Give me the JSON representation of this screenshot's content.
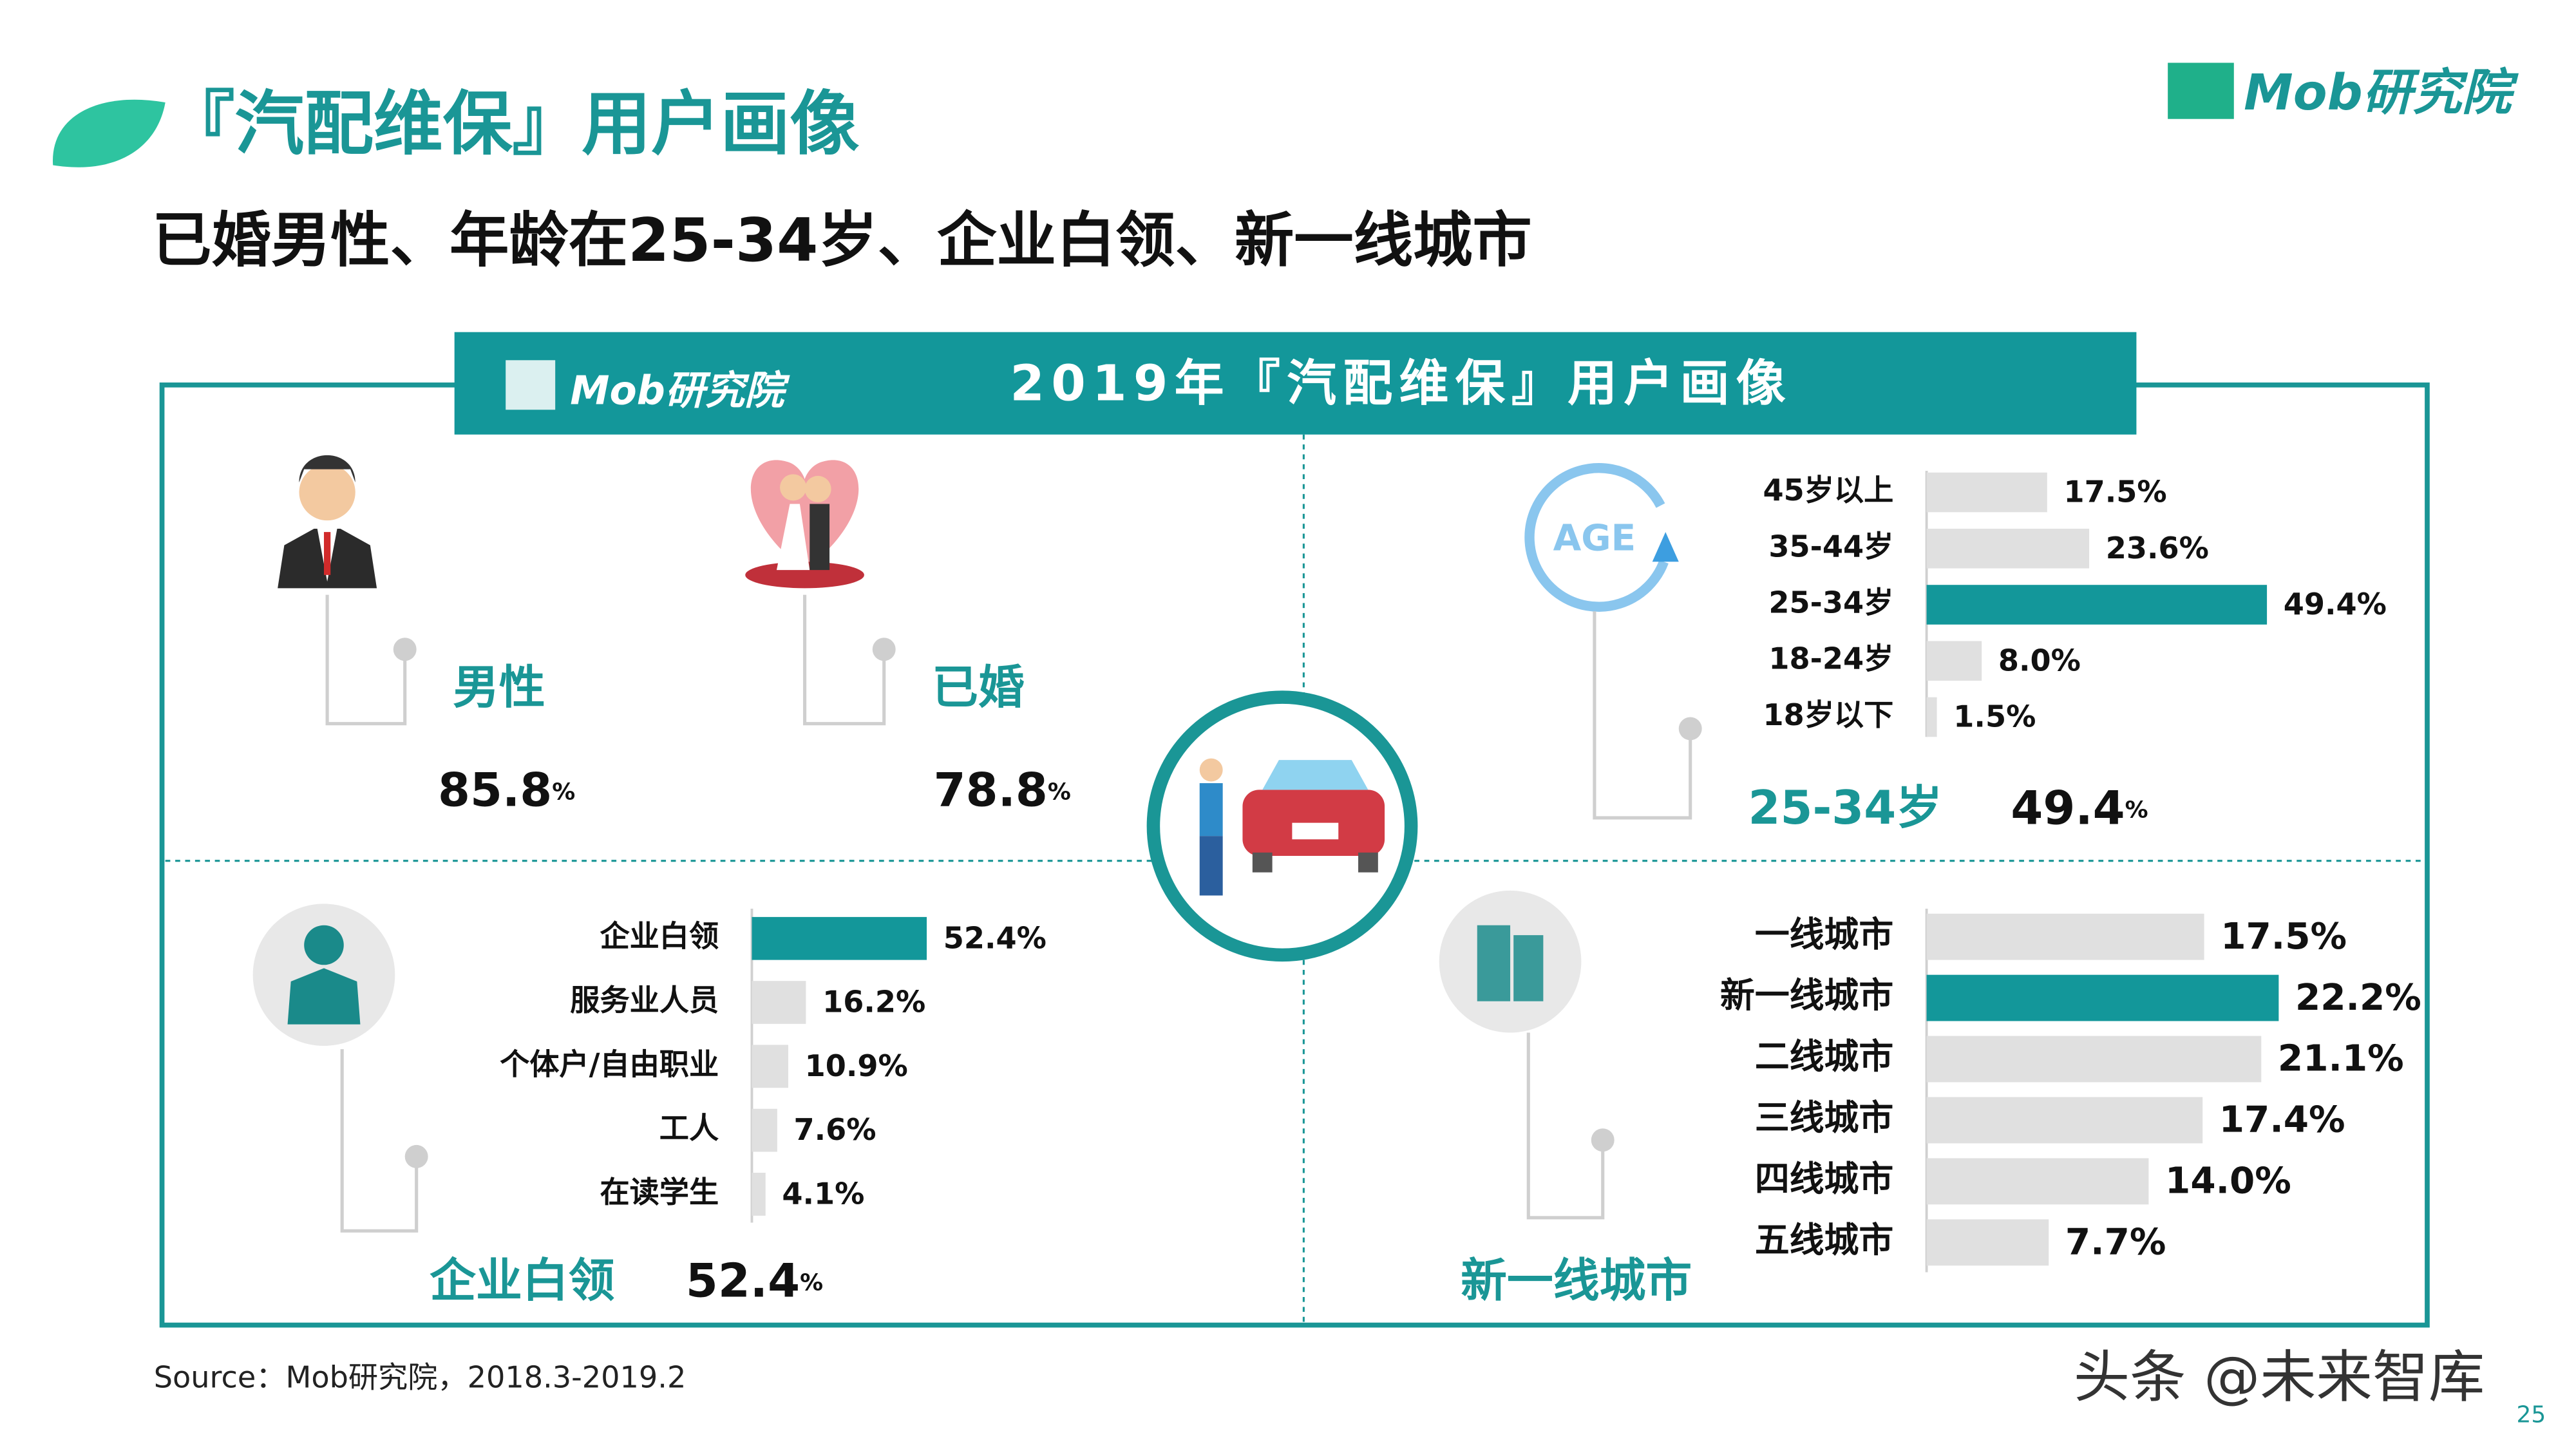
{
  "header": {
    "title": "『汽配维保』用户画像",
    "subtitle": "已婚男性、年龄在25-34岁、企业白领、新一线城市",
    "logo": "Mob研究院"
  },
  "banner": {
    "title": "2019年『汽配维保』用户画像",
    "logo": "Mob研究院"
  },
  "stats": [
    {
      "label": "男性",
      "value": 85.8,
      "unit": "%"
    },
    {
      "label": "已婚",
      "value": 78.8,
      "unit": "%"
    }
  ],
  "summaries": [
    {
      "label": "25-34岁",
      "value": 49.4,
      "unit": "%"
    },
    {
      "label": "企业白领",
      "value": 52.4,
      "unit": "%"
    },
    {
      "label": "新一线城市"
    }
  ],
  "chart_data": [
    {
      "type": "bar",
      "orientation": "horizontal",
      "categories": [
        "45岁以上",
        "35-44岁",
        "25-34岁",
        "18-24岁",
        "18岁以下"
      ],
      "values": [
        17.5,
        23.6,
        49.4,
        8.0,
        1.5
      ],
      "value_labels": [
        "17.5%",
        "23.6%",
        "49.4%",
        "8.0%",
        "1.5%"
      ],
      "colors": [
        "#e0e0e0",
        "#e0e0e0",
        "#13979a",
        "#e0e0e0",
        "#e0e0e0"
      ]
    },
    {
      "type": "bar",
      "orientation": "horizontal",
      "categories": [
        "企业白领",
        "服务业人员",
        "个体户/自由职业",
        "工人",
        "在读学生"
      ],
      "values": [
        52.4,
        16.2,
        10.9,
        7.6,
        4.1
      ],
      "value_labels": [
        "52.4%",
        "16.2%",
        "10.9%",
        "7.6%",
        "4.1%"
      ],
      "colors": [
        "#13979a",
        "#e0e0e0",
        "#e0e0e0",
        "#e0e0e0",
        "#e0e0e0"
      ]
    },
    {
      "type": "bar",
      "orientation": "horizontal",
      "categories": [
        "一线城市",
        "新一线城市",
        "二线城市",
        "三线城市",
        "四线城市",
        "五线城市"
      ],
      "values": [
        17.5,
        22.2,
        21.1,
        17.4,
        14.0,
        7.7
      ],
      "value_labels": [
        "17.5%",
        "22.2%",
        "21.1%",
        "17.4%",
        "14.0%",
        "7.7%"
      ],
      "colors": [
        "#e0e0e0",
        "#13979a",
        "#e0e0e0",
        "#e0e0e0",
        "#e0e0e0",
        "#e0e0e0"
      ]
    }
  ],
  "source": "Source：Mob研究院，2018.3-2019.2",
  "watermark": "头条 @未来智库",
  "page_number": "25"
}
